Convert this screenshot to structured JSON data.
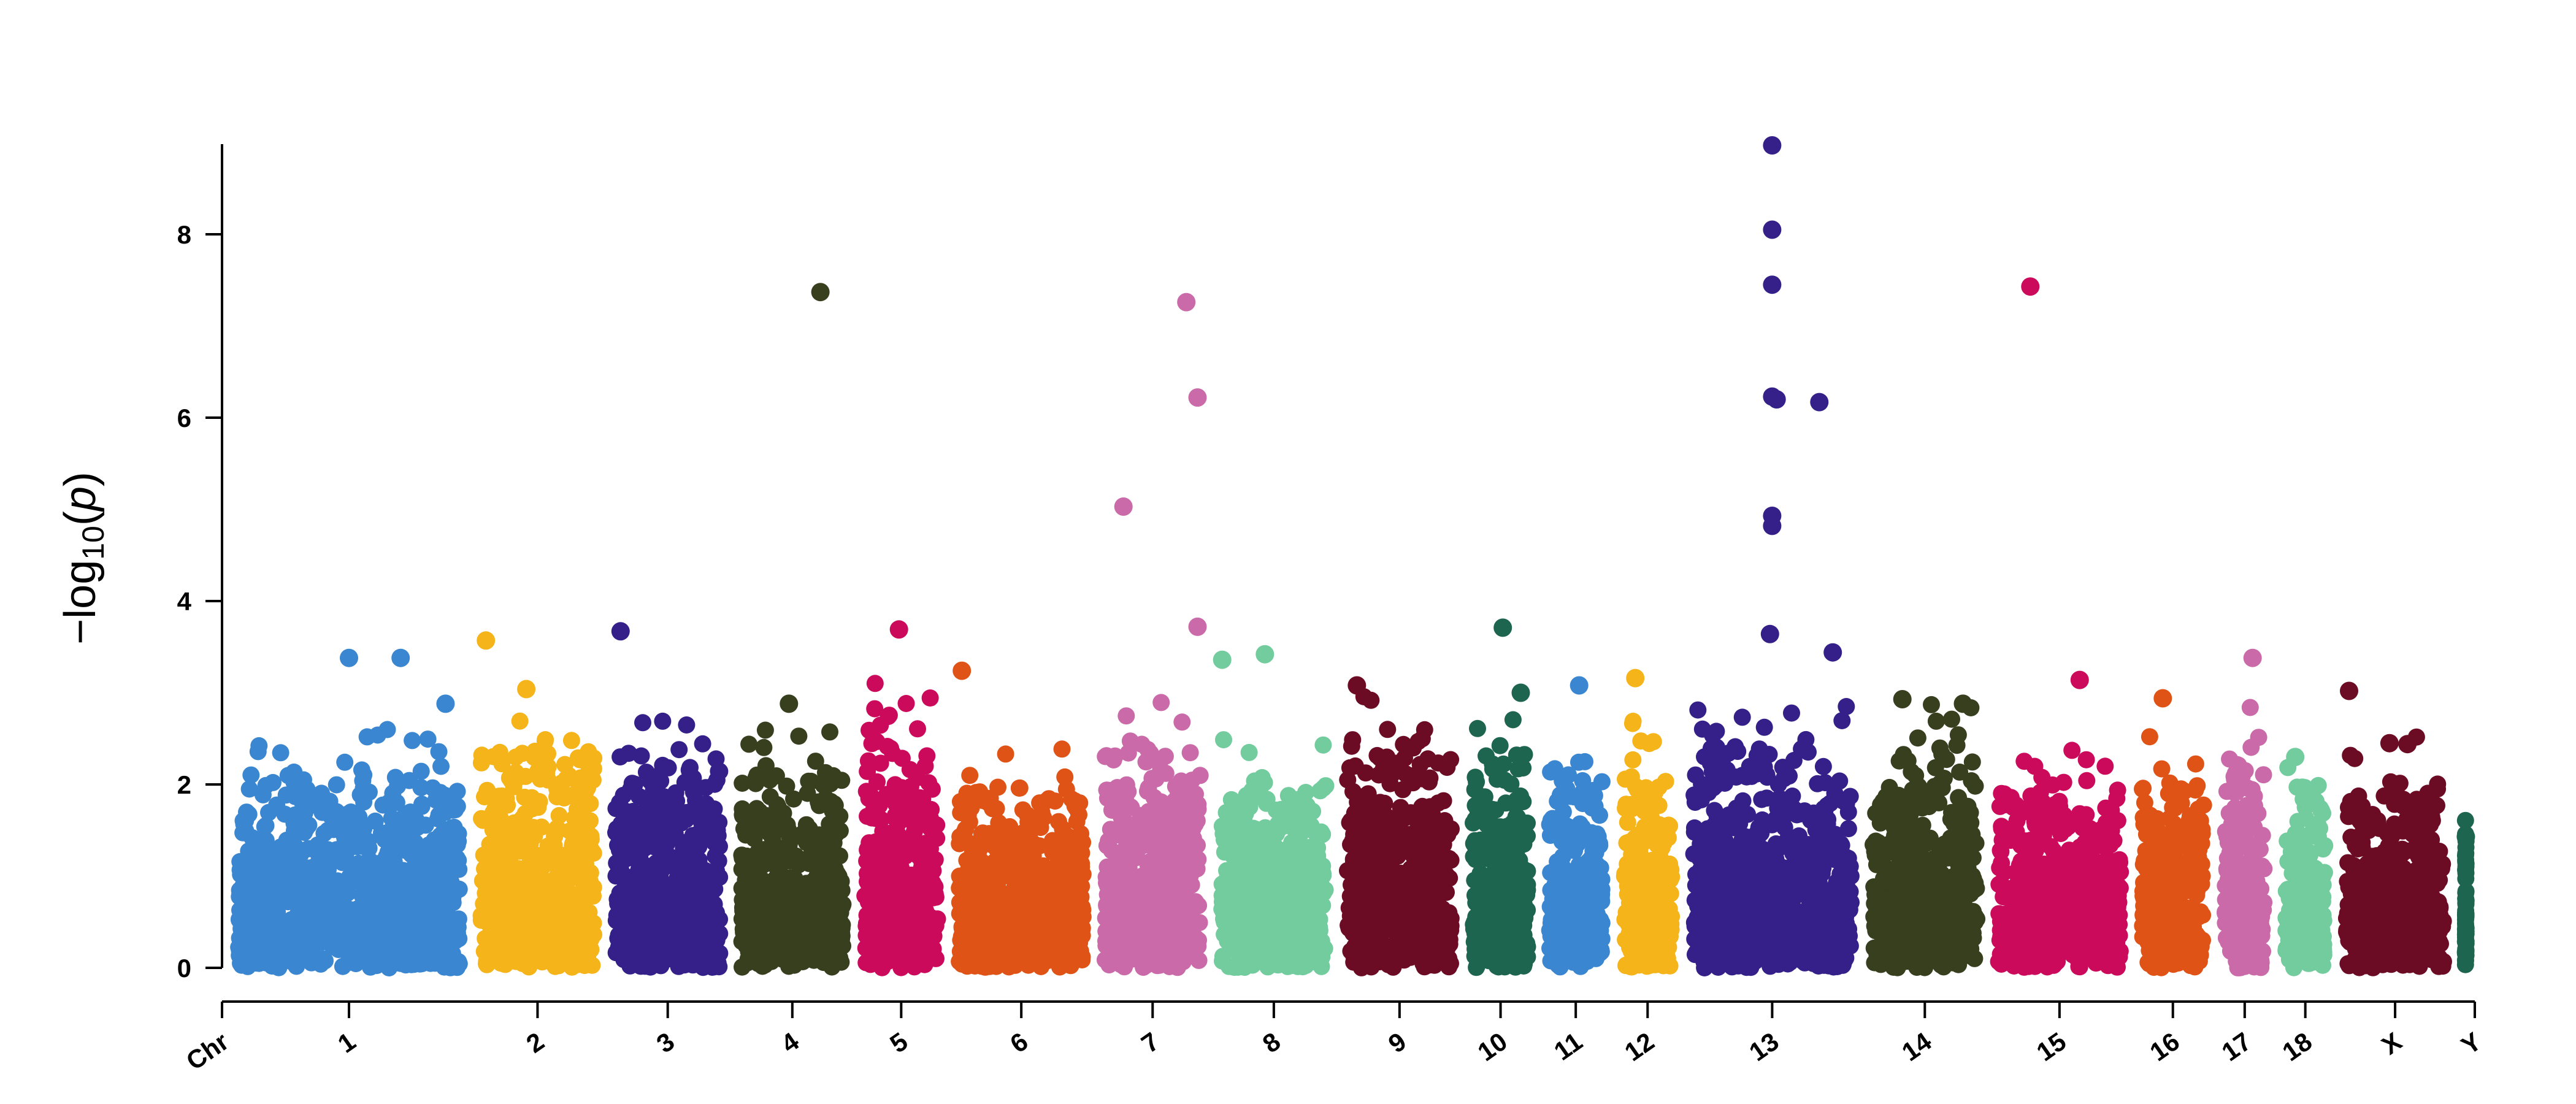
{
  "chart_data": {
    "type": "scatter",
    "subtype": "manhattan",
    "title": "",
    "xlabel": "",
    "ylabel": {
      "prefix": "−log",
      "subscript": "10",
      "open": "(",
      "variable": "p",
      "close": ")"
    },
    "ylim": [
      0,
      9
    ],
    "yticks": [
      0,
      2,
      4,
      6,
      8
    ],
    "x_axis_start_label": "Chr",
    "grid": false,
    "legend": "none",
    "chromosomes": [
      {
        "label": "1",
        "color": "#3a86d0",
        "span": [
          0.0,
          0.106
        ],
        "peak": 2.3,
        "hits": [
          {
            "x": 0.053,
            "y": 3.38
          },
          {
            "x": 0.076,
            "y": 3.38
          },
          {
            "x": 0.096,
            "y": 2.88
          }
        ]
      },
      {
        "label": "2",
        "color": "#f4b41a",
        "span": [
          0.108,
          0.166
        ],
        "peak": 2.6,
        "hits": [
          {
            "x": 0.114,
            "y": 3.57
          },
          {
            "x": 0.132,
            "y": 3.04
          }
        ]
      },
      {
        "label": "3",
        "color": "#35208a",
        "span": [
          0.168,
          0.222
        ],
        "peak": 2.5,
        "hits": [
          {
            "x": 0.174,
            "y": 3.67
          }
        ]
      },
      {
        "label": "4",
        "color": "#373f1f",
        "span": [
          0.224,
          0.277
        ],
        "peak": 2.4,
        "hits": [
          {
            "x": 0.263,
            "y": 7.37
          },
          {
            "x": 0.249,
            "y": 2.88
          }
        ]
      },
      {
        "label": "5",
        "color": "#cc0a5b",
        "span": [
          0.279,
          0.319
        ],
        "peak": 2.8,
        "hits": [
          {
            "x": 0.298,
            "y": 3.69
          }
        ]
      },
      {
        "label": "6",
        "color": "#e05316",
        "span": [
          0.321,
          0.384
        ],
        "peak": 2.1,
        "hits": [
          {
            "x": 0.326,
            "y": 3.24
          }
        ]
      },
      {
        "label": "7",
        "color": "#cb6aa8",
        "span": [
          0.386,
          0.436
        ],
        "peak": 2.6,
        "hits": [
          {
            "x": 0.426,
            "y": 7.26
          },
          {
            "x": 0.431,
            "y": 6.22
          },
          {
            "x": 0.398,
            "y": 5.03
          },
          {
            "x": 0.431,
            "y": 3.72
          }
        ]
      },
      {
        "label": "8",
        "color": "#72cc9d",
        "span": [
          0.438,
          0.492
        ],
        "peak": 2.2,
        "hits": [
          {
            "x": 0.461,
            "y": 3.42
          },
          {
            "x": 0.442,
            "y": 3.36
          }
        ]
      },
      {
        "label": "9",
        "color": "#6c0c24",
        "span": [
          0.494,
          0.548
        ],
        "peak": 2.6,
        "hits": [
          {
            "x": 0.502,
            "y": 3.08
          }
        ]
      },
      {
        "label": "10",
        "color": "#1e654f",
        "span": [
          0.55,
          0.582
        ],
        "peak": 2.4,
        "hits": [
          {
            "x": 0.567,
            "y": 3.71
          },
          {
            "x": 0.575,
            "y": 3.0
          }
        ]
      },
      {
        "label": "11",
        "color": "#3a86d0",
        "span": [
          0.584,
          0.615
        ],
        "peak": 2.3,
        "hits": [
          {
            "x": 0.601,
            "y": 3.08
          }
        ]
      },
      {
        "label": "12",
        "color": "#f4b41a",
        "span": [
          0.617,
          0.646
        ],
        "peak": 2.4,
        "hits": [
          {
            "x": 0.626,
            "y": 3.16
          }
        ]
      },
      {
        "label": "13",
        "color": "#35208a",
        "span": [
          0.648,
          0.726
        ],
        "peak": 2.6,
        "hits": [
          {
            "x": 0.687,
            "y": 8.97
          },
          {
            "x": 0.687,
            "y": 8.05
          },
          {
            "x": 0.687,
            "y": 7.45
          },
          {
            "x": 0.687,
            "y": 6.23
          },
          {
            "x": 0.689,
            "y": 6.2
          },
          {
            "x": 0.708,
            "y": 6.17
          },
          {
            "x": 0.687,
            "y": 4.93
          },
          {
            "x": 0.687,
            "y": 4.82
          },
          {
            "x": 0.686,
            "y": 3.64
          },
          {
            "x": 0.714,
            "y": 3.44
          }
        ]
      },
      {
        "label": "14",
        "color": "#373f1f",
        "span": [
          0.728,
          0.782
        ],
        "peak": 2.5,
        "hits": [
          {
            "x": 0.745,
            "y": 2.93
          },
          {
            "x": 0.772,
            "y": 2.88
          }
        ]
      },
      {
        "label": "15",
        "color": "#cc0a5b",
        "span": [
          0.784,
          0.846
        ],
        "peak": 2.1,
        "hits": [
          {
            "x": 0.802,
            "y": 7.43
          },
          {
            "x": 0.824,
            "y": 3.14
          }
        ]
      },
      {
        "label": "16",
        "color": "#e05316",
        "span": [
          0.848,
          0.883
        ],
        "peak": 2.2,
        "hits": [
          {
            "x": 0.861,
            "y": 2.94
          }
        ]
      },
      {
        "label": "17",
        "color": "#cb6aa8",
        "span": [
          0.885,
          0.91
        ],
        "peak": 2.5,
        "hits": [
          {
            "x": 0.901,
            "y": 3.38
          }
        ]
      },
      {
        "label": "18",
        "color": "#72cc9d",
        "span": [
          0.912,
          0.937
        ],
        "peak": 2.0,
        "hits": [
          {
            "x": 0.92,
            "y": 2.3
          }
        ]
      },
      {
        "label": "X",
        "color": "#6c0c24",
        "span": [
          0.939,
          0.99
        ],
        "peak": 2.2,
        "hits": [
          {
            "x": 0.944,
            "y": 3.02
          },
          {
            "x": 0.962,
            "y": 2.45
          },
          {
            "x": 0.97,
            "y": 2.44
          }
        ]
      },
      {
        "label": "Y",
        "color": "#1e654f",
        "span": [
          0.992,
          0.998
        ],
        "peak": 1.4,
        "hits": [
          {
            "x": 0.996,
            "y": 1.43
          }
        ]
      }
    ]
  }
}
